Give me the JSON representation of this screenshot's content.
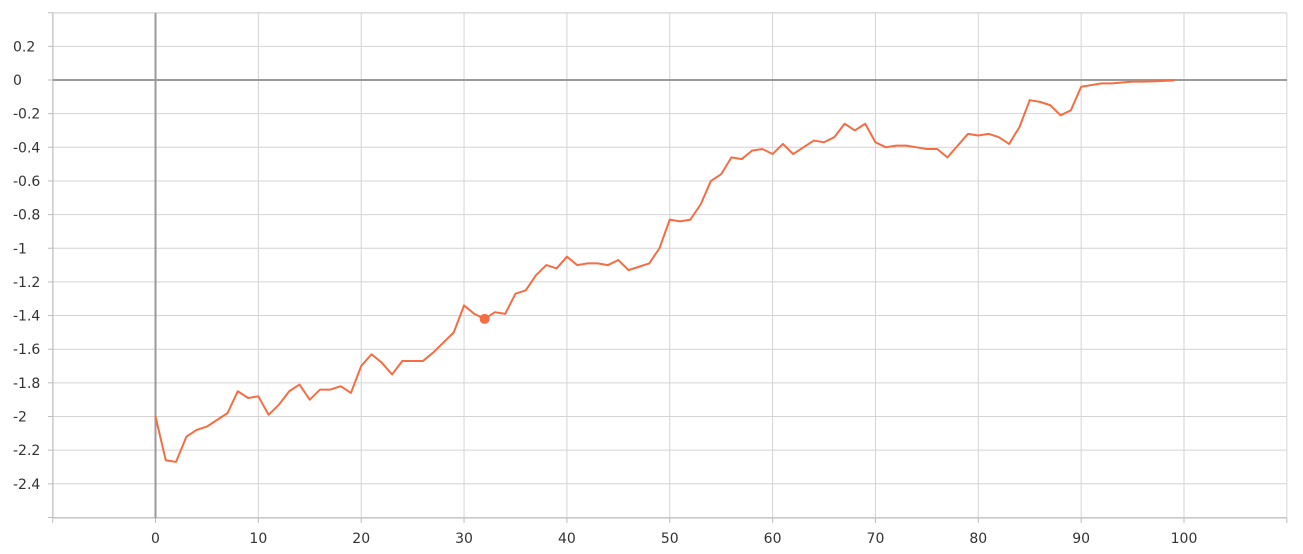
{
  "chart_data": {
    "type": "line",
    "title": "",
    "xlabel": "",
    "ylabel": "",
    "xlim": [
      -10,
      110
    ],
    "ylim": [
      -2.6,
      0.4
    ],
    "x_ticks": [
      0,
      10,
      20,
      30,
      40,
      50,
      60,
      70,
      80,
      90,
      100
    ],
    "x_tick_labels": [
      "0",
      "10",
      "20",
      "30",
      "40",
      "50",
      "60",
      "70",
      "80",
      "90",
      "100"
    ],
    "y_ticks": [
      0.2,
      0,
      -0.2,
      -0.4,
      -0.6,
      -0.8,
      -1,
      -1.2,
      -1.4,
      -1.6,
      -1.8,
      -2,
      -2.2,
      -2.4
    ],
    "y_tick_labels": [
      "0.2",
      "0",
      "-0.2",
      "-0.4",
      "-0.6",
      "-0.8",
      "-1",
      "-1.2",
      "-1.4",
      "-1.6",
      "-1.8",
      "-2",
      "-2.2",
      "-2.4"
    ],
    "grid": true,
    "legend": "none",
    "colors": {
      "line": "#f46d43",
      "highlight_point": "#f46d43"
    },
    "highlight": {
      "x": 32,
      "y": -1.42
    },
    "series": [
      {
        "color": "#f46d43",
        "x": [
          0,
          1,
          2,
          3,
          4,
          5,
          6,
          7,
          8,
          9,
          10,
          11,
          12,
          13,
          14,
          15,
          16,
          17,
          18,
          19,
          20,
          21,
          22,
          23,
          24,
          25,
          26,
          27,
          28,
          29,
          30,
          31,
          32,
          33,
          34,
          35,
          36,
          37,
          38,
          39,
          40,
          41,
          42,
          43,
          44,
          45,
          46,
          47,
          48,
          49,
          50,
          51,
          52,
          53,
          54,
          55,
          56,
          57,
          58,
          59,
          60,
          61,
          62,
          63,
          64,
          65,
          66,
          67,
          68,
          69,
          70,
          71,
          72,
          73,
          74,
          75,
          76,
          77,
          78,
          79,
          80,
          81,
          82,
          83,
          84,
          85,
          86,
          87,
          88,
          89,
          90,
          91,
          92,
          93,
          94,
          95,
          96,
          97,
          98,
          99
        ],
        "values": [
          -2.0,
          -2.26,
          -2.27,
          -2.12,
          -2.08,
          -2.06,
          -2.02,
          -1.98,
          -1.85,
          -1.89,
          -1.88,
          -1.99,
          -1.93,
          -1.85,
          -1.81,
          -1.9,
          -1.84,
          -1.84,
          -1.82,
          -1.86,
          -1.7,
          -1.63,
          -1.68,
          -1.75,
          -1.67,
          -1.67,
          -1.67,
          -1.62,
          -1.56,
          -1.5,
          -1.34,
          -1.39,
          -1.42,
          -1.38,
          -1.39,
          -1.27,
          -1.25,
          -1.16,
          -1.1,
          -1.12,
          -1.05,
          -1.1,
          -1.09,
          -1.09,
          -1.1,
          -1.07,
          -1.13,
          -1.11,
          -1.09,
          -1.0,
          -0.83,
          -0.84,
          -0.83,
          -0.74,
          -0.6,
          -0.56,
          -0.46,
          -0.47,
          -0.42,
          -0.41,
          -0.44,
          -0.38,
          -0.44,
          -0.4,
          -0.36,
          -0.37,
          -0.34,
          -0.26,
          -0.3,
          -0.26,
          -0.37,
          -0.4,
          -0.39,
          -0.39,
          -0.4,
          -0.41,
          -0.41,
          -0.46,
          -0.39,
          -0.32,
          -0.33,
          -0.32,
          -0.34,
          -0.38,
          -0.28,
          -0.12,
          -0.13,
          -0.15,
          -0.21,
          -0.18,
          -0.04,
          -0.03,
          -0.02,
          -0.02,
          -0.015,
          -0.01,
          -0.01,
          -0.008,
          -0.005,
          -0.003
        ]
      }
    ]
  }
}
